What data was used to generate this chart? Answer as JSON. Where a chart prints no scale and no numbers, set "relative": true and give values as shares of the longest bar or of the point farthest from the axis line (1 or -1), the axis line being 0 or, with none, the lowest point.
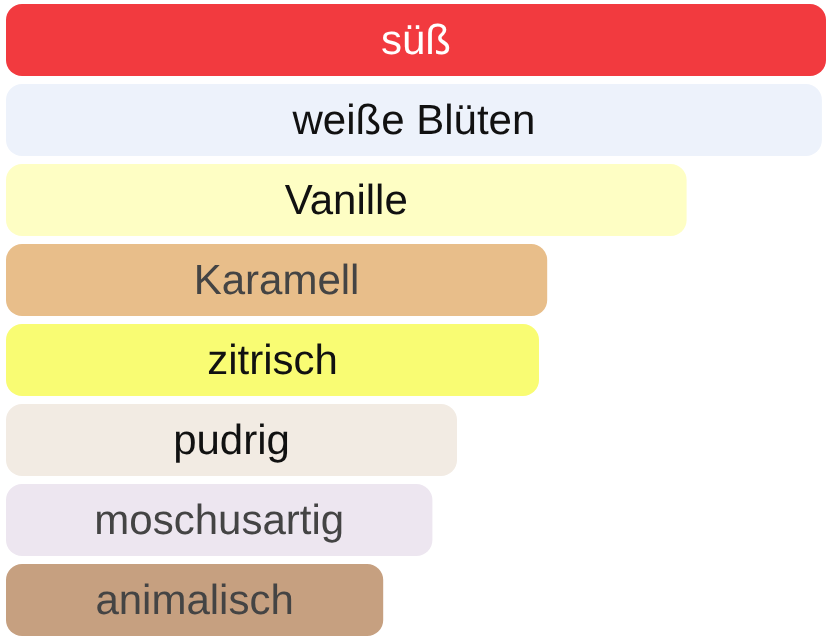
{
  "chart_data": {
    "type": "bar",
    "orientation": "horizontal",
    "relative": true,
    "legend": false,
    "categories": [
      "süß",
      "weiße Blüten",
      "Vanille",
      "Karamell",
      "zitrisch",
      "pudrig",
      "moschusartig",
      "animalisch"
    ],
    "values": [
      1,
      0.995,
      0.83,
      0.66,
      0.65,
      0.55,
      0.52,
      0.46
    ],
    "colors": [
      "#f23a3f",
      "#edf2fb",
      "#fefec4",
      "#e8be8a",
      "#f9fc73",
      "#f2ebe3",
      "#ede6f0",
      "#c6a080"
    ]
  }
}
